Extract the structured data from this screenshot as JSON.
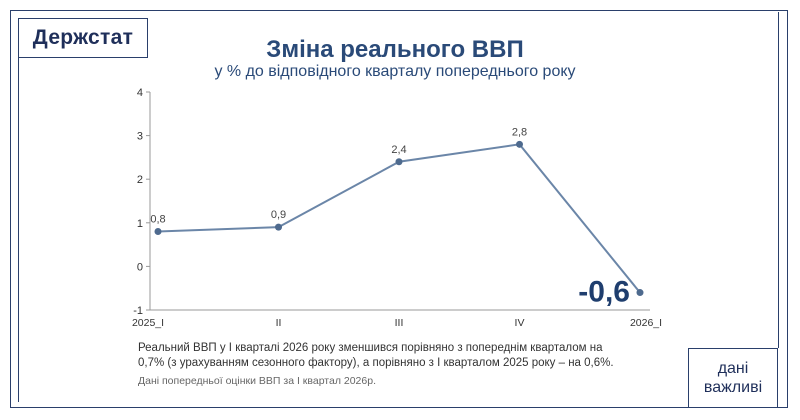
{
  "brand": {
    "logo_text": "Держстат"
  },
  "chart_data": {
    "type": "line",
    "title": "Зміна реального ВВП",
    "subtitle": "у % до відповідного кварталу попереднього року",
    "categories": [
      "2025_I",
      "II",
      "III",
      "IV",
      "2026_I"
    ],
    "series": [
      {
        "values": [
          0.8,
          0.9,
          2.4,
          2.8,
          -0.6
        ]
      }
    ],
    "data_labels": [
      "0,8",
      "0,9",
      "2,4",
      "2,8",
      "-0,6"
    ],
    "y_ticks": [
      "-1",
      "0",
      "1",
      "2",
      "3",
      "4"
    ],
    "y_tick_values": [
      -1,
      0,
      1,
      2,
      3,
      4
    ],
    "ylim": [
      -1,
      4
    ],
    "grid": false,
    "colors": {
      "line": "#6b86a8",
      "point": "#4e6a8e",
      "axis": "#999999",
      "highlight": "#1f3e6e",
      "label": "#444444"
    }
  },
  "footer": {
    "note_line1": "Реальний ВВП у I кварталі 2026 року зменшився порівняно з попереднім кварталом на",
    "note_line2": "0,7% (з урахуванням сезонного фактору), а порівняно з I кварталом 2025 року – на 0,6%.",
    "source": "Дані попередньої оцінки ВВП за I квартал 2026р.",
    "badge_line1": "дані",
    "badge_line2": "важливі"
  }
}
